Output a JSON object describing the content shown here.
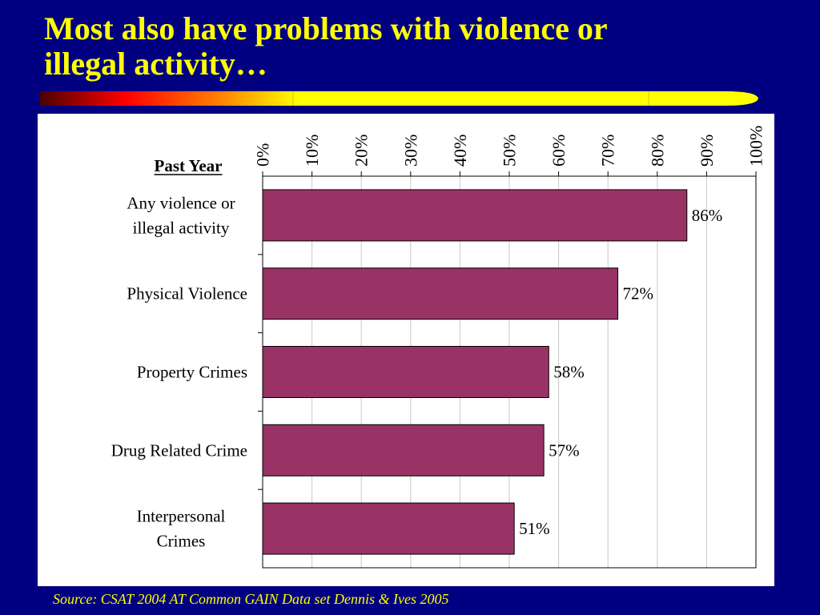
{
  "title": {
    "line1": "Most also have problems with violence or",
    "line2": "illegal activity…"
  },
  "colors": {
    "background": "#000080",
    "title": "#ffff00",
    "bar": "#993366",
    "banner_gradient": [
      "#4b0000",
      "#ff0000",
      "#ff8c00",
      "#ffff00"
    ]
  },
  "chart_data": {
    "type": "bar",
    "orientation": "horizontal",
    "group_label": "Past Year",
    "categories": [
      [
        "Any violence or",
        "illegal activity"
      ],
      [
        "Physical Violence"
      ],
      [
        "Property Crimes"
      ],
      [
        "Drug Related Crime"
      ],
      [
        "Interpersonal",
        "Crimes"
      ]
    ],
    "values": [
      86,
      72,
      58,
      57,
      51
    ],
    "data_labels": [
      "86%",
      "72%",
      "58%",
      "57%",
      "51%"
    ],
    "x_ticks": [
      "0%",
      "10%",
      "20%",
      "30%",
      "40%",
      "50%",
      "60%",
      "70%",
      "80%",
      "90%",
      "100%"
    ],
    "xlim": [
      0,
      100
    ],
    "axis_position": "top",
    "grid": true
  },
  "source": "Source:  CSAT 2004 AT Common GAIN Data set Dennis & Ives 2005"
}
